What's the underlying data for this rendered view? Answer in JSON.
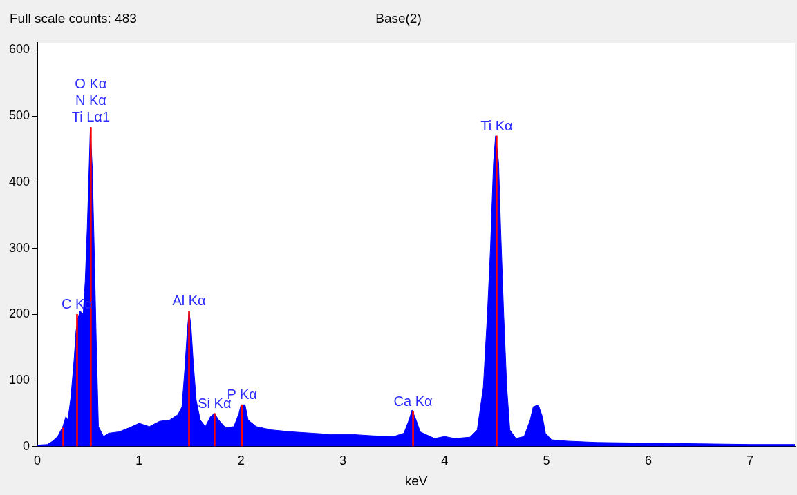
{
  "chart_data": {
    "type": "area",
    "title": "Base(2)",
    "xlabel": "keV",
    "annotations": [
      "Full scale counts: 483",
      {
        "text": "Ti Lα1",
        "x": 0.525,
        "y": 483
      },
      {
        "text": "N Kα",
        "x": 0.525,
        "y": 483
      },
      {
        "text": "O Kα",
        "x": 0.525,
        "y": 483
      },
      {
        "text": "C Kα",
        "x": 0.39,
        "y": 200
      },
      {
        "text": "Si Kα",
        "x": 1.74,
        "y": 50
      },
      {
        "text": "Al Kα",
        "x": 1.49,
        "y": 205
      },
      {
        "text": "P Kα",
        "x": 2.01,
        "y": 63
      },
      {
        "text": "Ca Kα",
        "x": 3.69,
        "y": 53
      },
      {
        "text": "Ti Kα",
        "x": 4.51,
        "y": 470
      }
    ],
    "series": [
      {
        "color": "#0000ff",
        "x": [
          0,
          0.1,
          0.15,
          0.2,
          0.25,
          0.28,
          0.3,
          0.33,
          0.36,
          0.38,
          0.4,
          0.42,
          0.45,
          0.47,
          0.49,
          0.51,
          0.52,
          0.54,
          0.56,
          0.58,
          0.6,
          0.65,
          0.7,
          0.8,
          0.9,
          1.0,
          1.1,
          1.2,
          1.3,
          1.38,
          1.42,
          1.45,
          1.47,
          1.49,
          1.51,
          1.53,
          1.56,
          1.6,
          1.65,
          1.7,
          1.74,
          1.78,
          1.85,
          1.93,
          1.98,
          2.0,
          2.04,
          2.07,
          2.15,
          2.3,
          2.5,
          2.7,
          2.9,
          3.1,
          3.3,
          3.5,
          3.6,
          3.65,
          3.68,
          3.72,
          3.76,
          3.9,
          4.0,
          4.1,
          4.25,
          4.32,
          4.38,
          4.42,
          4.45,
          4.48,
          4.5,
          4.53,
          4.55,
          4.58,
          4.61,
          4.64,
          4.7,
          4.78,
          4.84,
          4.87,
          4.92,
          4.96,
          4.99,
          5.05,
          5.2,
          5.5,
          6.0,
          6.5,
          7.0,
          7.44
        ],
        "values": [
          2,
          3,
          8,
          15,
          30,
          45,
          40,
          75,
          130,
          175,
          195,
          205,
          200,
          250,
          330,
          430,
          483,
          420,
          290,
          150,
          30,
          15,
          20,
          22,
          28,
          35,
          30,
          38,
          40,
          48,
          60,
          120,
          170,
          205,
          180,
          130,
          70,
          40,
          30,
          45,
          50,
          40,
          28,
          30,
          50,
          63,
          63,
          40,
          30,
          25,
          22,
          20,
          18,
          18,
          16,
          15,
          20,
          40,
          55,
          40,
          22,
          12,
          15,
          12,
          14,
          25,
          90,
          200,
          300,
          430,
          470,
          430,
          330,
          200,
          90,
          25,
          12,
          15,
          40,
          60,
          63,
          45,
          20,
          10,
          8,
          6,
          5,
          4,
          3,
          3
        ]
      },
      {
        "type": "bar",
        "color": "#ff0000",
        "x": [
          0.255,
          0.39,
          0.525,
          1.49,
          1.74,
          2.01,
          3.69,
          4.51
        ],
        "values": [
          28,
          200,
          483,
          205,
          50,
          63,
          53,
          470
        ]
      }
    ],
    "xlim": [
      0,
      7.44
    ],
    "ylim": [
      0,
      611
    ],
    "xticks": [
      0,
      1,
      2,
      3,
      4,
      5,
      6,
      7
    ],
    "yticks": [
      0,
      100,
      200,
      300,
      400,
      500,
      600
    ]
  }
}
